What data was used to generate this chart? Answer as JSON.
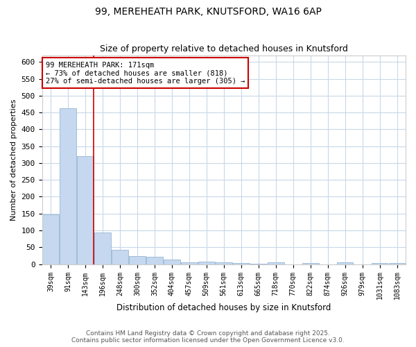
{
  "title1": "99, MEREHEATH PARK, KNUTSFORD, WA16 6AP",
  "title2": "Size of property relative to detached houses in Knutsford",
  "xlabel": "Distribution of detached houses by size in Knutsford",
  "ylabel": "Number of detached properties",
  "categories": [
    "39sqm",
    "91sqm",
    "143sqm",
    "196sqm",
    "248sqm",
    "300sqm",
    "352sqm",
    "404sqm",
    "457sqm",
    "509sqm",
    "561sqm",
    "613sqm",
    "665sqm",
    "718sqm",
    "770sqm",
    "822sqm",
    "874sqm",
    "926sqm",
    "979sqm",
    "1031sqm",
    "1083sqm"
  ],
  "bar_heights": [
    148,
    462,
    320,
    94,
    42,
    24,
    22,
    13,
    5,
    8,
    5,
    3,
    1,
    5,
    0,
    4,
    0,
    5,
    0,
    4,
    3
  ],
  "bar_color": "#c5d8ef",
  "bar_edge_color": "#a0bcd8",
  "plot_bg_color": "#ffffff",
  "fig_bg_color": "#ffffff",
  "grid_color": "#c8d8e8",
  "red_line_x": 2.5,
  "annotation_text": "99 MEREHEATH PARK: 171sqm\n← 73% of detached houses are smaller (818)\n27% of semi-detached houses are larger (305) →",
  "annotation_box_color": "#ffffff",
  "annotation_border_color": "#cc0000",
  "footer1": "Contains HM Land Registry data © Crown copyright and database right 2025.",
  "footer2": "Contains public sector information licensed under the Open Government Licence v3.0.",
  "ylim": [
    0,
    620
  ],
  "yticks": [
    0,
    50,
    100,
    150,
    200,
    250,
    300,
    350,
    400,
    450,
    500,
    550,
    600
  ]
}
